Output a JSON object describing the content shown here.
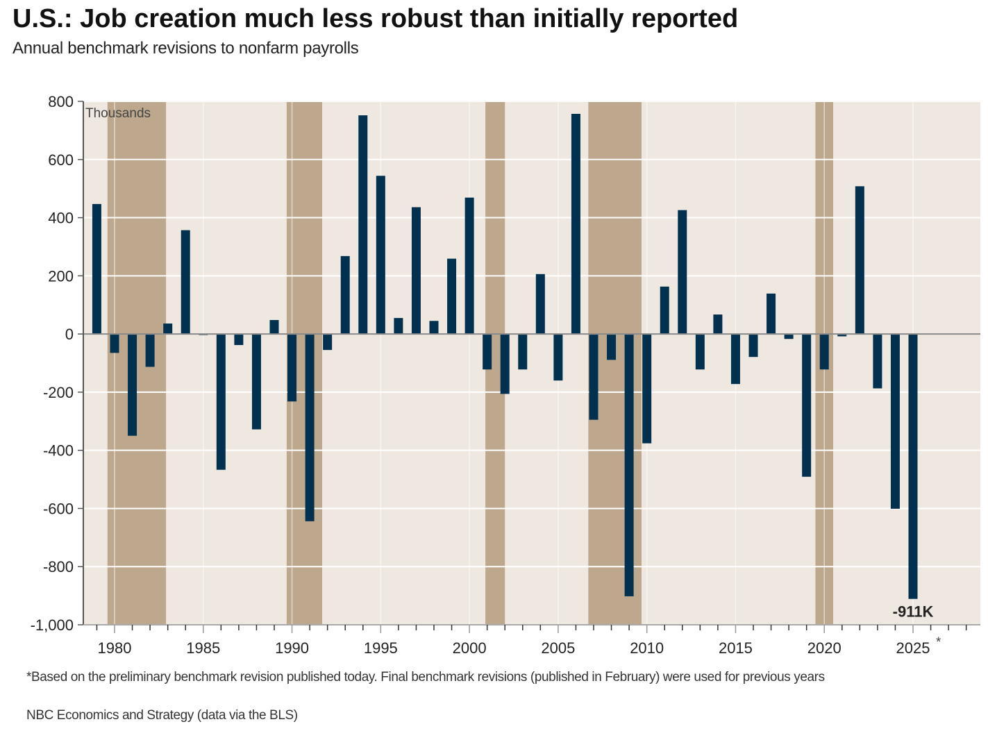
{
  "title": "U.S.: Job creation much less robust than initially reported",
  "subtitle": "Annual benchmark revisions to nonfarm payrolls",
  "footnote": "*Based on the preliminary benchmark revision published today. Final benchmark revisions (published in February) were used for previous years",
  "source": "NBC Economics and Strategy (data via the BLS)",
  "colors": {
    "bar": "#02314f",
    "plot_background": "#efe8e1",
    "recession_shading": "#bda88e",
    "gridline": "#ffffff",
    "zero_line": "#8a8a8a",
    "axis": "#555555"
  },
  "chart_data": {
    "type": "bar",
    "title": "U.S.: Job creation much less robust than initially reported",
    "subtitle": "Annual benchmark revisions to nonfarm payrolls",
    "xlabel": "",
    "ylabel": "Thousands",
    "unit_label": "Thousands",
    "ylim": [
      -1000,
      800
    ],
    "yticks": [
      800,
      600,
      400,
      200,
      0,
      -200,
      -400,
      -600,
      -800,
      -1000
    ],
    "ytick_labels": [
      "800",
      "600",
      "400",
      "200",
      "0",
      "-200",
      "-400",
      "-600",
      "-800",
      "-1,000"
    ],
    "xlim": [
      1978,
      2028.7
    ],
    "xticks_major": [
      1980,
      1985,
      1990,
      1995,
      2000,
      2005,
      2010,
      2015,
      2020,
      2025
    ],
    "xtick_labels": [
      "1980",
      "1985",
      "1990",
      "1995",
      "2000",
      "2005",
      "2010",
      "2015",
      "2020",
      "2025"
    ],
    "xtick_asterisk": "*",
    "grid": true,
    "legend": "none",
    "categories": [
      1979,
      1980,
      1981,
      1982,
      1983,
      1984,
      1985,
      1986,
      1987,
      1988,
      1989,
      1990,
      1991,
      1992,
      1993,
      1994,
      1995,
      1996,
      1997,
      1998,
      1999,
      2000,
      2001,
      2002,
      2003,
      2004,
      2005,
      2006,
      2007,
      2008,
      2009,
      2010,
      2011,
      2012,
      2013,
      2014,
      2015,
      2016,
      2017,
      2018,
      2019,
      2020,
      2021,
      2022,
      2023,
      2024,
      2025
    ],
    "values": [
      447,
      -65,
      -350,
      -113,
      36,
      357,
      -3,
      -467,
      -38,
      -328,
      48,
      -232,
      -644,
      -55,
      268,
      752,
      544,
      55,
      436,
      45,
      259,
      469,
      -122,
      -206,
      -122,
      206,
      -160,
      757,
      -295,
      -89,
      -902,
      -376,
      163,
      426,
      -122,
      67,
      -172,
      -79,
      139,
      -17,
      -491,
      -122,
      -8,
      508,
      -187,
      -601,
      -911
    ],
    "recessions": [
      {
        "start": 1979.6,
        "end": 1982.9
      },
      {
        "start": 1989.7,
        "end": 1991.7
      },
      {
        "start": 2000.9,
        "end": 2002.0
      },
      {
        "start": 2006.7,
        "end": 2009.7
      },
      {
        "start": 2019.5,
        "end": 2020.5
      }
    ],
    "annotations": [
      {
        "year": 2025,
        "text": "-911K"
      }
    ]
  }
}
